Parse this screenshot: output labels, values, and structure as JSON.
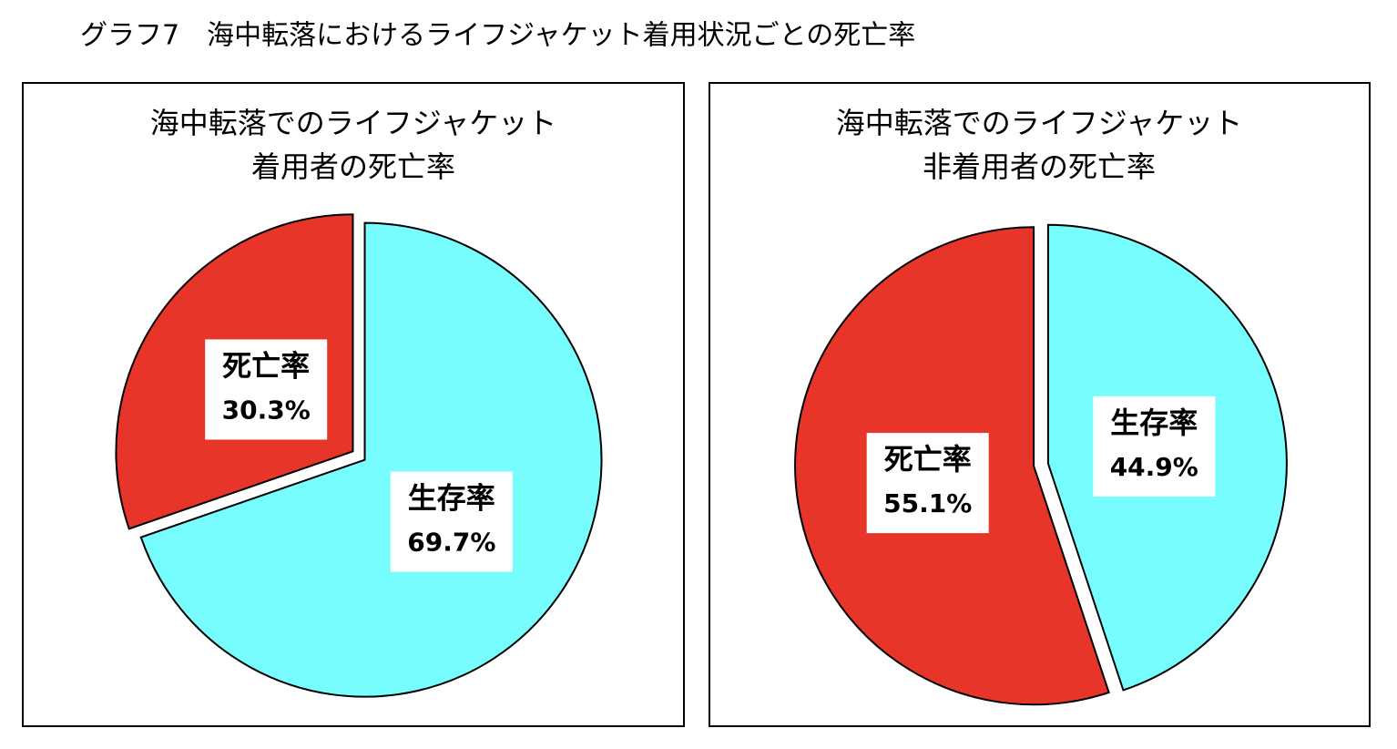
{
  "title": "グラフ7　海中転落におけるライフジャケット着用状況ごとの死亡率",
  "chart_data": [
    {
      "type": "pie",
      "title": [
        "海中転落でのライフジャケット",
        "着用者の死亡率"
      ],
      "categories": [
        "死亡率",
        "生存率"
      ],
      "values": [
        30.3,
        69.7
      ],
      "value_labels": [
        "30.3%",
        "69.7%"
      ],
      "colors": [
        "#e8352a",
        "#78fdfe"
      ]
    },
    {
      "type": "pie",
      "title": [
        "海中転落でのライフジャケット",
        "非着用者の死亡率"
      ],
      "categories": [
        "死亡率",
        "生存率"
      ],
      "values": [
        55.1,
        44.9
      ],
      "value_labels": [
        "55.1%",
        "44.9%"
      ],
      "colors": [
        "#e8352a",
        "#78fdfe"
      ]
    }
  ]
}
